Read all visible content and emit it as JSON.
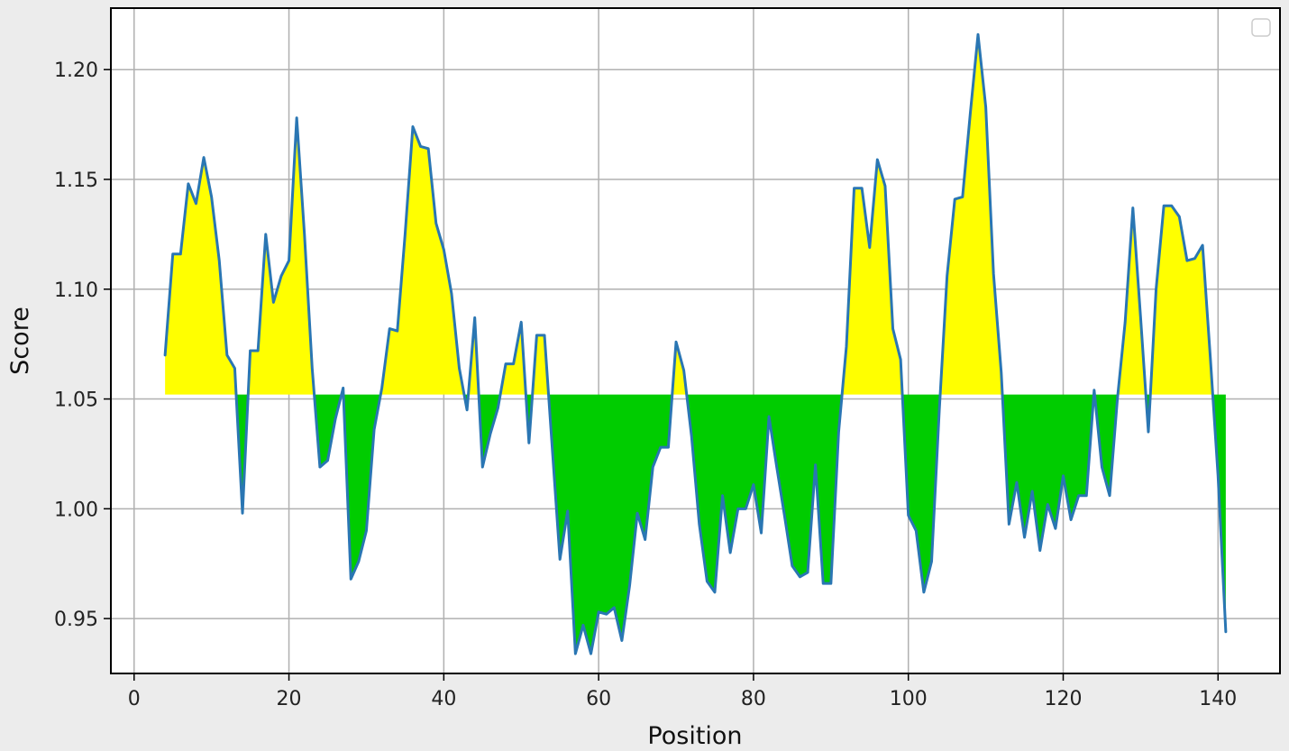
{
  "chart_data": {
    "type": "area",
    "title": "",
    "xlabel": "Position",
    "ylabel": "Score",
    "xlim": [
      -3,
      148
    ],
    "ylim": [
      0.925,
      1.228
    ],
    "x_ticks": [
      0,
      20,
      40,
      60,
      80,
      100,
      120,
      140
    ],
    "y_ticks": [
      0.95,
      1.0,
      1.05,
      1.1,
      1.15,
      1.2
    ],
    "y_tick_labels": [
      "0.95",
      "1.00",
      "1.05",
      "1.10",
      "1.15",
      "1.20"
    ],
    "grid": true,
    "legend": "top-right",
    "legend_entries": [],
    "baseline": 1.052,
    "colors": {
      "line": "#2a76b3",
      "above_fill": "#ffff00",
      "below_fill": "#00cc00",
      "grid": "#b0b0b0",
      "axes_bg": "#ffffff",
      "figure_bg": "#ececec"
    },
    "series": [
      {
        "x": [
          4,
          5,
          6,
          7,
          8,
          9,
          10,
          11,
          12,
          13,
          14,
          15,
          16,
          17,
          18,
          19,
          20,
          21,
          22,
          23,
          24,
          25,
          26,
          27,
          28,
          29,
          30,
          31,
          32,
          33,
          34,
          35,
          36,
          37,
          38,
          39,
          40,
          41,
          42,
          43,
          44,
          45,
          46,
          47,
          48,
          49,
          50,
          51,
          52,
          53,
          54,
          55,
          56,
          57,
          58,
          59,
          60,
          61,
          62,
          63,
          64,
          65,
          66,
          67,
          68,
          69,
          70,
          71,
          72,
          73,
          74,
          75,
          76,
          77,
          78,
          79,
          80,
          81,
          82,
          83,
          84,
          85,
          86,
          87,
          88,
          89,
          90,
          91,
          92,
          93,
          94,
          95,
          96,
          97,
          98,
          99,
          100,
          101,
          102,
          103,
          104,
          105,
          106,
          107,
          108,
          109,
          110,
          111,
          112,
          113,
          114,
          115,
          116,
          117,
          118,
          119,
          120,
          121,
          122,
          123,
          124,
          125,
          126,
          127,
          128,
          129,
          130,
          131,
          132,
          133,
          134,
          135,
          136,
          137,
          138,
          139,
          140,
          141
        ],
        "values": [
          1.07,
          1.116,
          1.116,
          1.148,
          1.139,
          1.16,
          1.142,
          1.113,
          1.07,
          1.064,
          0.998,
          1.072,
          1.072,
          1.125,
          1.094,
          1.106,
          1.113,
          1.178,
          1.125,
          1.064,
          1.019,
          1.022,
          1.041,
          1.055,
          0.968,
          0.976,
          0.99,
          1.036,
          1.055,
          1.082,
          1.081,
          1.125,
          1.174,
          1.165,
          1.164,
          1.13,
          1.118,
          1.098,
          1.064,
          1.045,
          1.087,
          1.019,
          1.034,
          1.046,
          1.066,
          1.066,
          1.085,
          1.03,
          1.079,
          1.079,
          1.028,
          0.977,
          0.999,
          0.934,
          0.947,
          0.934,
          0.953,
          0.952,
          0.955,
          0.94,
          0.965,
          0.998,
          0.986,
          1.019,
          1.028,
          1.028,
          1.076,
          1.063,
          1.033,
          0.993,
          0.967,
          0.962,
          1.006,
          0.98,
          1.0,
          1.0,
          1.011,
          0.989,
          1.042,
          1.019,
          0.997,
          0.974,
          0.969,
          0.971,
          1.02,
          0.966,
          0.966,
          1.035,
          1.074,
          1.146,
          1.146,
          1.119,
          1.159,
          1.147,
          1.082,
          1.068,
          0.997,
          0.99,
          0.962,
          0.976,
          1.045,
          1.106,
          1.141,
          1.142,
          1.18,
          1.216,
          1.183,
          1.107,
          1.062,
          0.993,
          1.012,
          0.987,
          1.008,
          0.981,
          1.002,
          0.991,
          1.015,
          0.995,
          1.006,
          1.006,
          1.054,
          1.019,
          1.006,
          1.05,
          1.085,
          1.137,
          1.087,
          1.035,
          1.1,
          1.138,
          1.138,
          1.133,
          1.113,
          1.114,
          1.12,
          1.069,
          1.015,
          0.944
        ]
      }
    ]
  }
}
